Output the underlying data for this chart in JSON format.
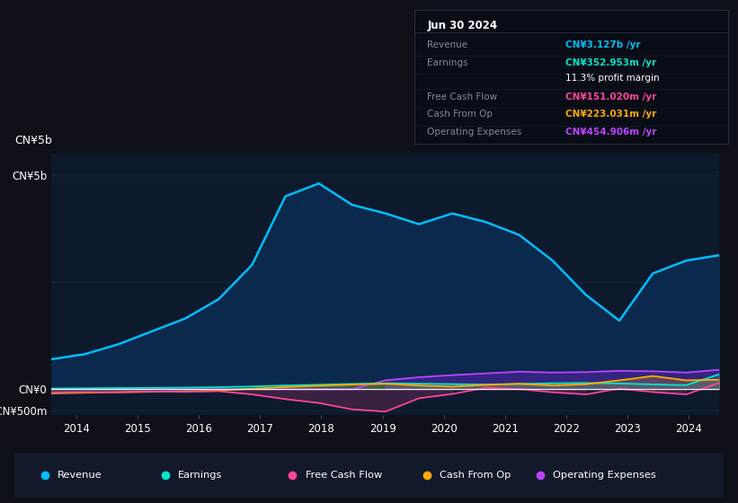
{
  "bg_color": "#0d1117",
  "plot_bg_color": "#0d1a2e",
  "info_box_bg": "#080c14",
  "ylim": [
    -600,
    5500
  ],
  "xlabel_years": [
    2014,
    2015,
    2016,
    2017,
    2018,
    2019,
    2020,
    2021,
    2022,
    2023,
    2024
  ],
  "ytick_labels": [
    "-CN¥500m",
    "CN¥0",
    "CN¥5b"
  ],
  "ytick_values": [
    -500,
    0,
    5000
  ],
  "revenue_color": "#00bfff",
  "revenue_fill": "#0a2a4e",
  "earnings_color": "#00e5cc",
  "fcf_color": "#ff4499",
  "cfo_color": "#ffaa00",
  "opex_color": "#bb44ff",
  "opex_fill": "#5522aa",
  "title_date": "Jun 30 2024",
  "info_rows": [
    {
      "label": "Revenue",
      "value": "CN¥3.127b /yr",
      "value_color": "#00bfff"
    },
    {
      "label": "Earnings",
      "value": "CN¥352.953m /yr",
      "value_color": "#00e5cc"
    },
    {
      "label": "",
      "value": "11.3% profit margin",
      "value_color": "#ffffff"
    },
    {
      "label": "Free Cash Flow",
      "value": "CN¥151.020m /yr",
      "value_color": "#ff4499"
    },
    {
      "label": "Cash From Op",
      "value": "CN¥223.031m /yr",
      "value_color": "#ffaa00"
    },
    {
      "label": "Operating Expenses",
      "value": "CN¥454.906m /yr",
      "value_color": "#bb44ff"
    }
  ],
  "legend_items": [
    {
      "label": "Revenue",
      "color": "#00bfff"
    },
    {
      "label": "Earnings",
      "color": "#00e5cc"
    },
    {
      "label": "Free Cash Flow",
      "color": "#ff4499"
    },
    {
      "label": "Cash From Op",
      "color": "#ffaa00"
    },
    {
      "label": "Operating Expenses",
      "color": "#bb44ff"
    }
  ],
  "revenue": [
    700,
    820,
    1050,
    1350,
    1650,
    2100,
    2900,
    4500,
    4800,
    4300,
    4100,
    3850,
    4100,
    3900,
    3600,
    3000,
    2200,
    1600,
    2700,
    3000,
    3127
  ],
  "earnings": [
    18,
    22,
    28,
    32,
    38,
    48,
    65,
    88,
    105,
    125,
    140,
    130,
    120,
    110,
    125,
    140,
    148,
    135,
    115,
    95,
    353
  ],
  "fcf": [
    -75,
    -65,
    -70,
    -55,
    -60,
    -45,
    -120,
    -230,
    -320,
    -470,
    -520,
    -210,
    -110,
    35,
    5,
    -70,
    -120,
    15,
    -65,
    -120,
    151
  ],
  "cfo": [
    -95,
    -80,
    -68,
    -58,
    -48,
    -28,
    12,
    52,
    82,
    108,
    128,
    88,
    62,
    102,
    128,
    88,
    118,
    208,
    308,
    208,
    223
  ],
  "opex": [
    0,
    0,
    0,
    0,
    0,
    0,
    0,
    0,
    0,
    0,
    210,
    280,
    330,
    370,
    410,
    390,
    400,
    430,
    420,
    390,
    455
  ]
}
